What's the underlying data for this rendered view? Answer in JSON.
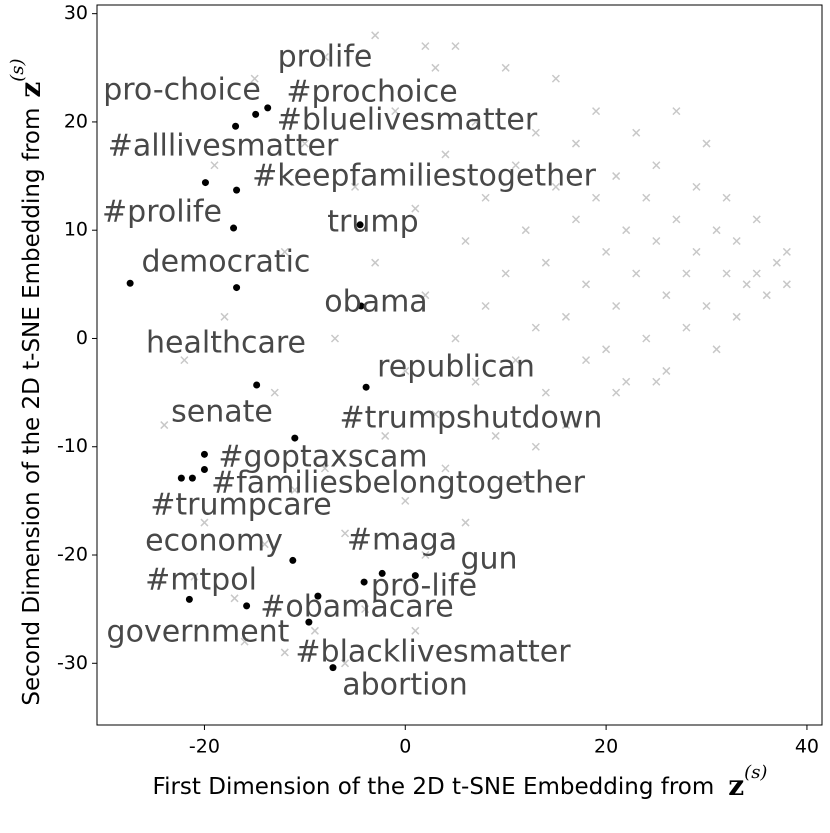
{
  "chart_data": {
    "type": "scatter",
    "xlabel": "First Dimension of the 2D t-SNE Embedding from",
    "ylabel": "Second Dimension of the 2D t-SNE Embedding from",
    "axis_symbol": "z",
    "axis_symbol_superscript": "(s)",
    "xlim": [
      -30.7,
      41.5
    ],
    "ylim": [
      -35.7,
      30.8
    ],
    "xticks": [
      -20,
      0,
      20,
      40
    ],
    "yticks": [
      -30,
      -20,
      -10,
      0,
      10,
      20,
      30
    ],
    "series": [
      {
        "color": "#c8c8c8",
        "marker": "x",
        "x": [
          -24,
          -22,
          -20,
          -19,
          -18,
          -16,
          -14,
          -13,
          -12,
          -11,
          -10,
          -9,
          -8,
          -7,
          -6,
          -5,
          -4,
          -3,
          -2,
          -1,
          0,
          0,
          1,
          1,
          2,
          2,
          3,
          3,
          4,
          4,
          5,
          5,
          6,
          6,
          7,
          7,
          8,
          8,
          9,
          10,
          10,
          11,
          11,
          12,
          12,
          13,
          13,
          14,
          14,
          15,
          15,
          16,
          16,
          17,
          17,
          18,
          18,
          19,
          19,
          20,
          20,
          21,
          21,
          22,
          22,
          23,
          23,
          24,
          24,
          25,
          25,
          26,
          26,
          27,
          27,
          28,
          28,
          29,
          29,
          30,
          30,
          31,
          31,
          32,
          32,
          33,
          33,
          34,
          35,
          35,
          36,
          37,
          38,
          38,
          -21,
          -17,
          -12,
          -6,
          -15,
          -8,
          -3,
          2,
          13,
          21,
          25
        ],
        "y": [
          -8,
          -2,
          -17,
          16,
          2,
          -28,
          -19,
          -5,
          8,
          -14,
          18,
          -27,
          -12,
          0,
          -18,
          14,
          -25,
          7,
          -9,
          21,
          -3,
          -15,
          12,
          -27,
          4,
          -20,
          25,
          -7,
          17,
          -12,
          27,
          0,
          9,
          -17,
          20,
          -4,
          13,
          3,
          -9,
          25,
          6,
          16,
          -2,
          10,
          -13,
          1,
          19,
          7,
          -5,
          14,
          24,
          2,
          -8,
          11,
          18,
          5,
          -2,
          13,
          21,
          8,
          -1,
          15,
          3,
          10,
          -4,
          19,
          6,
          13,
          0,
          9,
          16,
          4,
          -3,
          11,
          21,
          6,
          1,
          14,
          8,
          3,
          18,
          10,
          -1,
          6,
          13,
          9,
          2,
          5,
          11,
          6,
          4,
          7,
          5,
          8,
          -22,
          -24,
          -29,
          -30,
          24,
          26,
          28,
          27,
          -10,
          -5,
          -4
        ]
      },
      {
        "color": "#000000",
        "marker": "o",
        "labels": [
          "prolife",
          "pro-choice",
          "#prochoice",
          "#bluelivesmatter",
          "#alllivesmatter",
          "#keepfamiliestogether",
          "trump",
          "#prolife",
          "democratic",
          "obama",
          "healthcare",
          "republican",
          "senate",
          "#trumpshutdown",
          "#goptaxscam",
          "#familiesbelongtogether",
          "#trumpcare",
          "economy",
          "#maga",
          "gun",
          "#mtpol",
          "pro-life",
          "#obamacare",
          "government",
          "#blacklivesmatter",
          "abortion"
        ],
        "x": [
          -16.8,
          -16.9,
          -14.9,
          -13.7,
          -19.9,
          -16.8,
          -4.5,
          -17.1,
          -27.4,
          -4.4,
          -14.8,
          -3.9,
          -21.2,
          -11.0,
          -20.0,
          -20.0,
          -22.3,
          -11.2,
          -2.3,
          1.0,
          -21.5,
          -4.1,
          -15.8,
          -8.7,
          -9.6,
          -7.2
        ],
        "y": [
          4.7,
          19.6,
          20.7,
          21.3,
          14.4,
          13.7,
          10.5,
          10.2,
          5.1,
          3.0,
          -4.3,
          -4.5,
          -12.9,
          -9.2,
          -10.7,
          -12.1,
          -12.9,
          -20.5,
          -21.7,
          -21.9,
          -24.1,
          -22.5,
          -24.7,
          -23.8,
          -26.2,
          -30.4
        ]
      }
    ]
  }
}
